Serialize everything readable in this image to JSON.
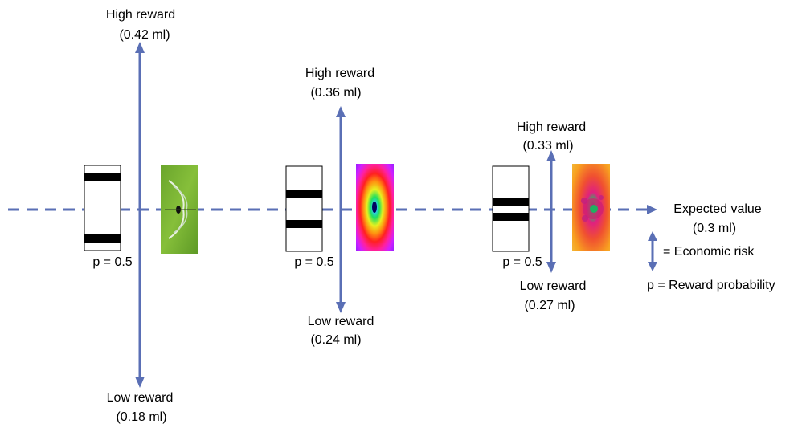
{
  "colors": {
    "arrow": "#5a6fb5",
    "dashed_line": "#5a6fb5",
    "bar": "#000000",
    "box_border": "#000000"
  },
  "options": [
    {
      "high_label": "High reward",
      "high_amount": "(0.42 ml)",
      "low_label": "Low reward",
      "low_amount": "(0.18 ml)",
      "probability": "p = 0.5",
      "high_reward_ml": 0.42,
      "low_reward_ml": 0.18,
      "stimulus_icon": "green-fractal-icon"
    },
    {
      "high_label": "High reward",
      "high_amount": "(0.36 ml)",
      "low_label": "Low reward",
      "low_amount": "(0.24 ml)",
      "probability": "p = 0.5",
      "high_reward_ml": 0.36,
      "low_reward_ml": 0.24,
      "stimulus_icon": "rainbow-rings-fractal-icon"
    },
    {
      "high_label": "High reward",
      "high_amount": "(0.33 ml)",
      "low_label": "Low reward",
      "low_amount": "(0.27 ml)",
      "probability": "p = 0.5",
      "high_reward_ml": 0.33,
      "low_reward_ml": 0.27,
      "stimulus_icon": "orange-mandelbrot-fractal-icon"
    }
  ],
  "expected_value": {
    "label": "Expected value",
    "amount": "(0.3 ml)",
    "value_ml": 0.3
  },
  "legend": {
    "risk": "= Economic risk",
    "probability": "p = Reward probability"
  }
}
